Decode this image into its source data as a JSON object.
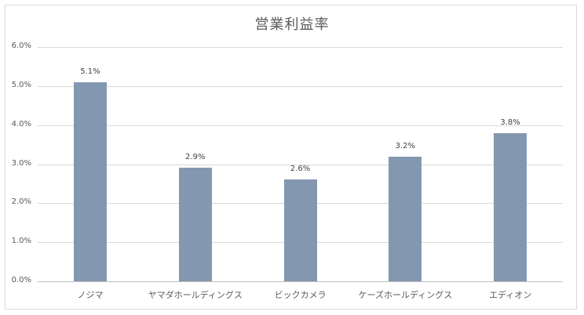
{
  "chart_data": {
    "type": "bar",
    "title": "営業利益率",
    "xlabel": "",
    "ylabel": "",
    "categories": [
      "ノジマ",
      "ヤマダホールディングス",
      "ビックカメラ",
      "ケーズホールディングス",
      "エディオン"
    ],
    "values": [
      5.1,
      2.9,
      2.6,
      3.2,
      3.8
    ],
    "value_labels": [
      "5.1%",
      "2.9%",
      "2.6%",
      "3.2%",
      "3.8%"
    ],
    "ylim": [
      0,
      6
    ],
    "yticks": [
      "0.0%",
      "1.0%",
      "2.0%",
      "3.0%",
      "4.0%",
      "5.0%",
      "6.0%"
    ],
    "grid": true,
    "legend": null,
    "bar_color": "#8497b0"
  },
  "chart": {
    "title": "営業利益率",
    "yticks": [
      "6.0%",
      "5.0%",
      "4.0%",
      "3.0%",
      "2.0%",
      "1.0%",
      "0.0%"
    ],
    "bars": [
      {
        "label": "ノジマ",
        "value": 5.1,
        "value_label": "5.1%"
      },
      {
        "label": "ヤマダホールディングス",
        "value": 2.9,
        "value_label": "2.9%"
      },
      {
        "label": "ビックカメラ",
        "value": 2.6,
        "value_label": "2.6%"
      },
      {
        "label": "ケーズホールディングス",
        "value": 3.2,
        "value_label": "3.2%"
      },
      {
        "label": "エディオン",
        "value": 3.8,
        "value_label": "3.8%"
      }
    ]
  }
}
